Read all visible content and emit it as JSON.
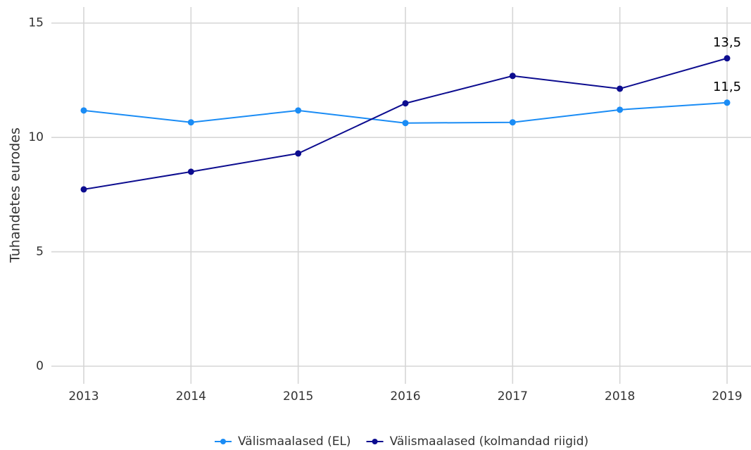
{
  "chart_data": {
    "type": "line",
    "ylabel": "Tuhandetes eurodes",
    "categories": [
      "2013",
      "2014",
      "2015",
      "2016",
      "2017",
      "2018",
      "2019"
    ],
    "series": [
      {
        "name": "Välismaalased (EL)",
        "color": "#1a8cf5",
        "values": [
          11.18,
          10.66,
          11.18,
          10.63,
          10.66,
          11.21,
          11.52
        ],
        "value_labels": [
          null,
          null,
          null,
          null,
          null,
          null,
          "11,5"
        ]
      },
      {
        "name": "Välismaalased (kolmandad riigid)",
        "color": "#0c0c8f",
        "values": [
          7.73,
          8.5,
          9.3,
          11.49,
          12.69,
          12.13,
          13.46
        ],
        "value_labels": [
          null,
          null,
          null,
          null,
          null,
          null,
          "13,5"
        ]
      }
    ],
    "ylim": [
      -0.77,
      15.7
    ],
    "yticks": [
      0,
      5,
      10,
      15
    ],
    "grid": true,
    "legend": "bottom"
  }
}
